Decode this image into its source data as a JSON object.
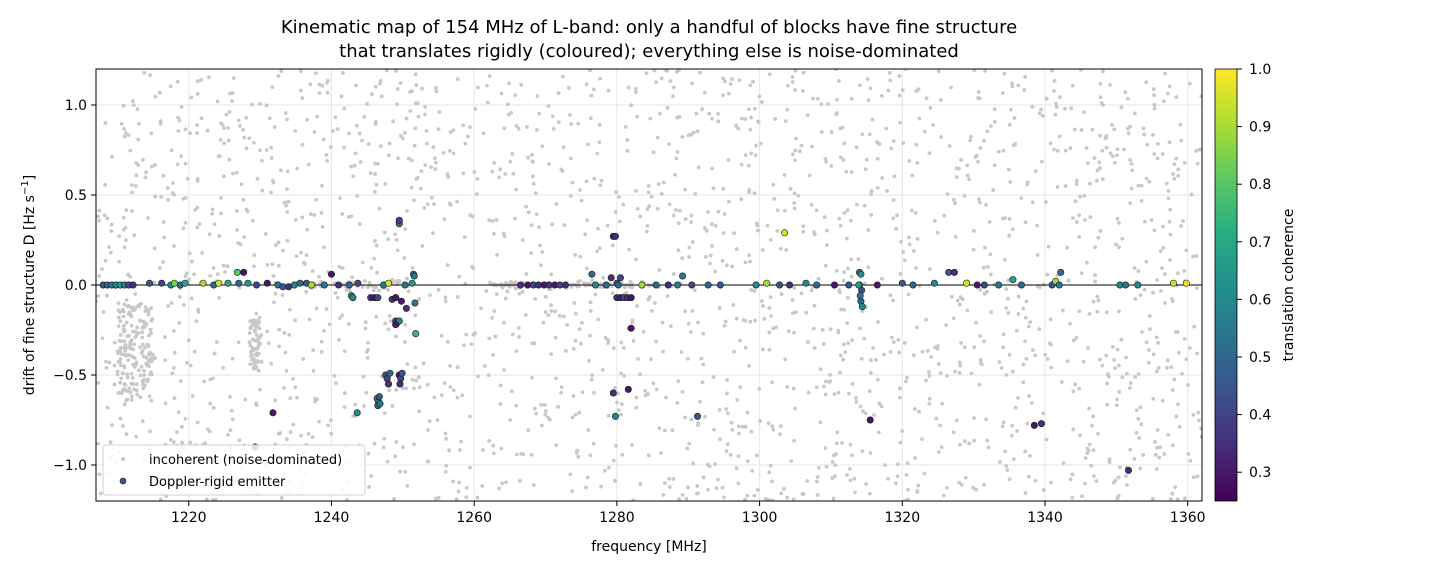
{
  "chart_data": {
    "type": "scatter",
    "title": [
      "Kinematic map of 154 MHz of L-band: only a handful of blocks have fine structure",
      "that translates rigidly (coloured); everything else is noise-dominated"
    ],
    "xlabel": "frequency [MHz]",
    "ylabel": "drift of fine structure  D  [Hz s",
    "ylabel_superscript": "−1",
    "ylabel_suffix": "]",
    "xlim": [
      1207,
      1362
    ],
    "ylim": [
      -1.2,
      1.2
    ],
    "x_ticks": [
      1220,
      1240,
      1260,
      1280,
      1300,
      1320,
      1340,
      1360
    ],
    "y_ticks": [
      1.0,
      0.5,
      0.0,
      -0.5,
      -1.0
    ],
    "x_tick_labels": [
      "1220",
      "1240",
      "1260",
      "1280",
      "1300",
      "1320",
      "1340",
      "1360"
    ],
    "y_tick_labels": [
      "1.0",
      "0.5",
      "0.0",
      "−0.5",
      "−1.0"
    ],
    "grid": true,
    "reference_line_y": 0.0,
    "legend": {
      "placement": "lower-left",
      "entries": [
        "incoherent (noise-dominated)",
        "Doppler-rigid emitter"
      ]
    },
    "colorbar": {
      "label": "translation coherence",
      "colormap": "viridis",
      "range": [
        0.25,
        1.0
      ],
      "ticks": [
        1.0,
        0.9,
        0.8,
        0.7,
        0.6,
        0.5,
        0.4,
        0.3
      ],
      "tick_labels": [
        "1.0",
        "0.9",
        "0.8",
        "0.7",
        "0.6",
        "0.5",
        "0.4",
        "0.3"
      ]
    },
    "colors": {
      "incoherent": "#c8c8c8",
      "zero_line": "#000000",
      "grid": "#e6e6e6"
    },
    "series": [
      {
        "name": "Doppler-rigid emitter",
        "points": [
          [
            1208.0,
            0.0,
            0.45
          ],
          [
            1208.6,
            0.0,
            0.5
          ],
          [
            1209.2,
            0.0,
            0.55
          ],
          [
            1209.8,
            0.0,
            0.6
          ],
          [
            1210.4,
            0.0,
            0.65
          ],
          [
            1211.0,
            0.0,
            0.55
          ],
          [
            1211.6,
            0.0,
            0.4
          ],
          [
            1212.2,
            0.0,
            0.35
          ],
          [
            1214.5,
            0.01,
            0.45
          ],
          [
            1216.2,
            0.01,
            0.4
          ],
          [
            1217.5,
            0.0,
            0.6
          ],
          [
            1218.0,
            0.01,
            0.85
          ],
          [
            1218.8,
            0.0,
            0.5
          ],
          [
            1219.5,
            0.01,
            0.7
          ],
          [
            1222.0,
            0.01,
            0.9
          ],
          [
            1223.5,
            0.0,
            0.5
          ],
          [
            1224.2,
            0.01,
            0.95
          ],
          [
            1225.5,
            0.01,
            0.7
          ],
          [
            1226.8,
            0.07,
            0.8
          ],
          [
            1227.7,
            0.07,
            0.3
          ],
          [
            1227.0,
            0.01,
            0.5
          ],
          [
            1228.3,
            0.01,
            0.65
          ],
          [
            1229.5,
            0.0,
            0.4
          ],
          [
            1231.0,
            0.01,
            0.3
          ],
          [
            1232.5,
            0.0,
            0.55
          ],
          [
            1233.2,
            -0.01,
            0.45
          ],
          [
            1234.0,
            -0.01,
            0.35
          ],
          [
            1234.8,
            0.0,
            0.6
          ],
          [
            1235.6,
            0.01,
            0.5
          ],
          [
            1236.5,
            0.01,
            0.45
          ],
          [
            1237.2,
            0.0,
            0.9
          ],
          [
            1239.0,
            0.0,
            0.55
          ],
          [
            1240.0,
            0.06,
            0.3
          ],
          [
            1241.0,
            0.0,
            0.35
          ],
          [
            1242.5,
            0.0,
            0.5
          ],
          [
            1242.8,
            -0.06,
            0.55
          ],
          [
            1243.0,
            -0.07,
            0.6
          ],
          [
            1243.7,
            0.01,
            0.4
          ],
          [
            1245.5,
            -0.07,
            0.35
          ],
          [
            1246.0,
            -0.07,
            0.3
          ],
          [
            1246.5,
            -0.07,
            0.4
          ],
          [
            1247.3,
            0.0,
            0.55
          ],
          [
            1248.0,
            0.01,
            0.95
          ],
          [
            1248.5,
            -0.08,
            0.35
          ],
          [
            1249.0,
            -0.07,
            0.3
          ],
          [
            1249.5,
            0.35,
            0.45
          ],
          [
            1249.5,
            0.34,
            0.5
          ],
          [
            1249.5,
            0.36,
            0.4
          ],
          [
            1249.8,
            -0.09,
            0.3
          ],
          [
            1250.5,
            -0.13,
            0.35
          ],
          [
            1250.3,
            0.0,
            0.55
          ],
          [
            1251.3,
            0.01,
            0.65
          ],
          [
            1251.5,
            0.06,
            0.5
          ],
          [
            1251.6,
            0.05,
            0.55
          ],
          [
            1251.7,
            -0.1,
            0.55
          ],
          [
            1251.8,
            -0.27,
            0.75
          ],
          [
            1249.0,
            -0.2,
            0.4
          ],
          [
            1249.2,
            -0.21,
            0.35
          ],
          [
            1249.5,
            -0.2,
            0.6
          ],
          [
            1249.0,
            -0.22,
            0.3
          ],
          [
            1247.6,
            -0.5,
            0.45
          ],
          [
            1247.8,
            -0.52,
            0.4
          ],
          [
            1248.0,
            -0.55,
            0.35
          ],
          [
            1248.2,
            -0.49,
            0.5
          ],
          [
            1249.5,
            -0.5,
            0.3
          ],
          [
            1249.7,
            -0.52,
            0.4
          ],
          [
            1249.9,
            -0.49,
            0.45
          ],
          [
            1249.6,
            -0.55,
            0.35
          ],
          [
            1246.4,
            -0.63,
            0.55
          ],
          [
            1246.6,
            -0.65,
            0.6
          ],
          [
            1246.5,
            -0.67,
            0.5
          ],
          [
            1246.7,
            -0.62,
            0.45
          ],
          [
            1246.8,
            -0.66,
            0.55
          ],
          [
            1243.6,
            -0.71,
            0.6
          ],
          [
            1231.8,
            -0.71,
            0.3
          ],
          [
            1229.3,
            -0.9,
            0.35
          ],
          [
            1266.5,
            0.0,
            0.35
          ],
          [
            1267.5,
            0.0,
            0.3
          ],
          [
            1268.3,
            0.0,
            0.4
          ],
          [
            1269.0,
            0.0,
            0.35
          ],
          [
            1269.8,
            0.0,
            0.3
          ],
          [
            1270.5,
            0.0,
            0.35
          ],
          [
            1271.3,
            0.0,
            0.3
          ],
          [
            1272.0,
            0.0,
            0.4
          ],
          [
            1272.8,
            0.0,
            0.35
          ],
          [
            1276.5,
            0.06,
            0.5
          ],
          [
            1277.0,
            0.0,
            0.6
          ],
          [
            1278.5,
            0.0,
            0.5
          ],
          [
            1279.2,
            0.04,
            0.35
          ],
          [
            1279.5,
            0.27,
            0.3
          ],
          [
            1279.8,
            0.27,
            0.35
          ],
          [
            1280.5,
            0.04,
            0.4
          ],
          [
            1280.0,
            0.01,
            0.45
          ],
          [
            1280.2,
            0.0,
            0.5
          ],
          [
            1280.0,
            -0.07,
            0.35
          ],
          [
            1280.5,
            -0.07,
            0.3
          ],
          [
            1281.0,
            -0.07,
            0.4
          ],
          [
            1281.5,
            -0.07,
            0.35
          ],
          [
            1282.0,
            -0.07,
            0.3
          ],
          [
            1282.0,
            -0.24,
            0.3
          ],
          [
            1281.6,
            -0.58,
            0.3
          ],
          [
            1279.5,
            -0.6,
            0.35
          ],
          [
            1279.8,
            -0.73,
            0.6
          ],
          [
            1291.3,
            -0.73,
            0.45
          ],
          [
            1283.5,
            0.0,
            0.9
          ],
          [
            1285.5,
            0.0,
            0.5
          ],
          [
            1287.2,
            0.0,
            0.35
          ],
          [
            1288.5,
            0.0,
            0.55
          ],
          [
            1289.2,
            0.05,
            0.55
          ],
          [
            1290.5,
            0.0,
            0.4
          ],
          [
            1292.8,
            0.0,
            0.5
          ],
          [
            1294.5,
            0.0,
            0.45
          ],
          [
            1299.5,
            0.0,
            0.6
          ],
          [
            1301.0,
            0.01,
            0.9
          ],
          [
            1302.8,
            0.0,
            0.45
          ],
          [
            1303.5,
            0.29,
            0.95
          ],
          [
            1304.2,
            0.0,
            0.35
          ],
          [
            1306.5,
            0.01,
            0.6
          ],
          [
            1308.0,
            0.0,
            0.5
          ],
          [
            1310.5,
            0.0,
            0.3
          ],
          [
            1312.5,
            0.0,
            0.45
          ],
          [
            1314.0,
            0.07,
            0.55
          ],
          [
            1314.2,
            0.06,
            0.6
          ],
          [
            1314.0,
            0.0,
            0.5
          ],
          [
            1314.3,
            -0.03,
            0.45
          ],
          [
            1314.1,
            -0.06,
            0.55
          ],
          [
            1314.2,
            -0.09,
            0.5
          ],
          [
            1314.4,
            -0.12,
            0.6
          ],
          [
            1313.9,
            0.0,
            0.65
          ],
          [
            1315.5,
            -0.75,
            0.3
          ],
          [
            1316.5,
            0.0,
            0.3
          ],
          [
            1320.0,
            0.01,
            0.45
          ],
          [
            1321.5,
            0.0,
            0.5
          ],
          [
            1324.5,
            0.01,
            0.6
          ],
          [
            1326.5,
            0.07,
            0.45
          ],
          [
            1327.3,
            0.07,
            0.35
          ],
          [
            1329.0,
            0.01,
            0.95
          ],
          [
            1330.5,
            0.0,
            0.3
          ],
          [
            1331.5,
            0.0,
            0.4
          ],
          [
            1333.5,
            0.0,
            0.55
          ],
          [
            1335.5,
            0.03,
            0.7
          ],
          [
            1336.7,
            0.0,
            0.5
          ],
          [
            1341.0,
            0.0,
            0.45
          ],
          [
            1341.5,
            0.02,
            0.9
          ],
          [
            1342.2,
            0.07,
            0.5
          ],
          [
            1342.0,
            0.0,
            0.55
          ],
          [
            1350.5,
            0.0,
            0.6
          ],
          [
            1351.3,
            0.0,
            0.55
          ],
          [
            1353.0,
            0.0,
            0.6
          ],
          [
            1358.0,
            0.01,
            0.95
          ],
          [
            1359.8,
            0.01,
            0.98
          ],
          [
            1338.5,
            -0.78,
            0.3
          ],
          [
            1339.5,
            -0.77,
            0.35
          ],
          [
            1351.7,
            -1.03,
            0.35
          ]
        ]
      }
    ]
  }
}
